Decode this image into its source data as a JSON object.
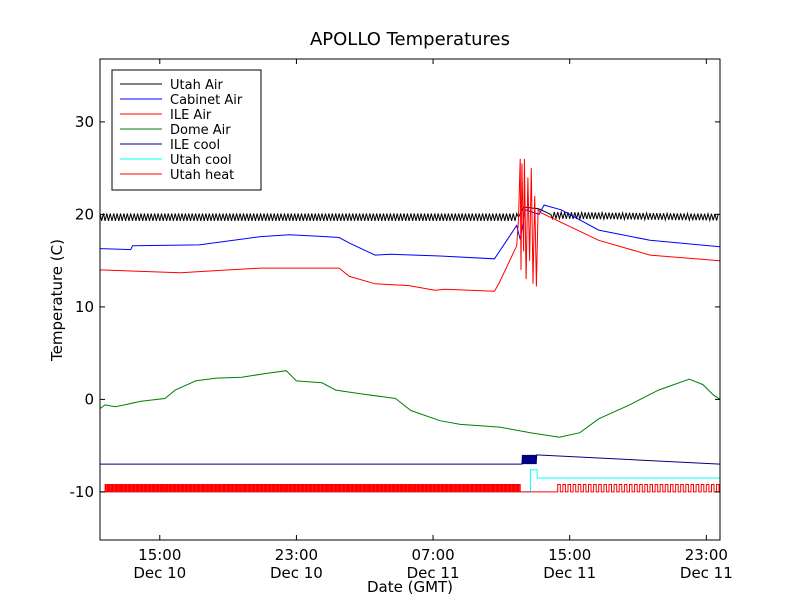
{
  "chart_data": {
    "type": "line",
    "title": "APOLLO Temperatures",
    "xlabel": "Date (GMT)",
    "ylabel": "Temperature (C)",
    "x_units": "hours since Dec 10 00:00 GMT",
    "xlim": [
      11.5,
      47.8
    ],
    "ylim": [
      -15.2,
      36.8
    ],
    "grid": false,
    "legend_position": "top-left",
    "xticks": [
      {
        "value": 15,
        "time": "15:00",
        "date": "Dec 10"
      },
      {
        "value": 23,
        "time": "23:00",
        "date": "Dec 10"
      },
      {
        "value": 31,
        "time": "07:00",
        "date": "Dec 11"
      },
      {
        "value": 39,
        "time": "15:00",
        "date": "Dec 11"
      },
      {
        "value": 47,
        "time": "23:00",
        "date": "Dec 11"
      }
    ],
    "yticks": [
      {
        "value": -10,
        "label": "-10"
      },
      {
        "value": 0,
        "label": "0"
      },
      {
        "value": 10,
        "label": "10"
      },
      {
        "value": 20,
        "label": "20"
      },
      {
        "value": 30,
        "label": "30"
      }
    ],
    "series": [
      {
        "name": "Utah Air",
        "color": "#000000",
        "oscillation": {
          "center": 19.7,
          "amplitude": 0.4,
          "period_h": 0.2
        },
        "points": [
          [
            11.5,
            19.7
          ],
          [
            36.0,
            19.7
          ],
          [
            36.3,
            20.8
          ],
          [
            37.2,
            20.6
          ],
          [
            38.0,
            19.9
          ],
          [
            47.8,
            19.7
          ]
        ]
      },
      {
        "name": "Cabinet Air",
        "color": "#0000ff",
        "points": [
          [
            11.5,
            16.3
          ],
          [
            13.3,
            16.2
          ],
          [
            13.4,
            16.6
          ],
          [
            17.3,
            16.7
          ],
          [
            20.9,
            17.6
          ],
          [
            22.6,
            17.8
          ],
          [
            24.7,
            17.6
          ],
          [
            25.5,
            17.5
          ],
          [
            26.1,
            16.9
          ],
          [
            27.6,
            15.6
          ],
          [
            28.5,
            15.7
          ],
          [
            31.4,
            15.5
          ],
          [
            34.6,
            15.2
          ],
          [
            35.9,
            18.8
          ],
          [
            36.1,
            17.3
          ],
          [
            36.4,
            20.5
          ],
          [
            37.2,
            20.0
          ],
          [
            37.5,
            21.0
          ],
          [
            38.5,
            20.5
          ],
          [
            40.7,
            18.3
          ],
          [
            43.7,
            17.2
          ],
          [
            47.8,
            16.5
          ]
        ]
      },
      {
        "name": "ILE Air",
        "color": "#ff0000",
        "points": [
          [
            11.5,
            14.0
          ],
          [
            16.2,
            13.7
          ],
          [
            20.9,
            14.2
          ],
          [
            25.5,
            14.2
          ],
          [
            26.1,
            13.3
          ],
          [
            27.6,
            12.5
          ],
          [
            29.6,
            12.3
          ],
          [
            31.1,
            11.8
          ],
          [
            31.7,
            11.9
          ],
          [
            34.6,
            11.7
          ],
          [
            34.9,
            12.7
          ],
          [
            35.9,
            16.6
          ],
          [
            36.0,
            19.5
          ],
          [
            36.1,
            26
          ],
          [
            36.15,
            14
          ],
          [
            36.2,
            25.5
          ],
          [
            36.3,
            16
          ],
          [
            36.35,
            26
          ],
          [
            36.45,
            13
          ],
          [
            36.55,
            24
          ],
          [
            36.65,
            15
          ],
          [
            36.75,
            25
          ],
          [
            36.85,
            12.5
          ],
          [
            36.95,
            22
          ],
          [
            37.05,
            12.2
          ],
          [
            37.15,
            20.6
          ],
          [
            37.3,
            20.2
          ],
          [
            40.7,
            17.2
          ],
          [
            43.7,
            15.6
          ],
          [
            47.8,
            15.0
          ]
        ]
      },
      {
        "name": "Dome Air",
        "color": "#008000",
        "points": [
          [
            11.5,
            -1.0
          ],
          [
            11.8,
            -0.6
          ],
          [
            12.4,
            -0.8
          ],
          [
            13.9,
            -0.2
          ],
          [
            15.3,
            0.1
          ],
          [
            15.9,
            1.0
          ],
          [
            17.1,
            2.0
          ],
          [
            18.3,
            2.3
          ],
          [
            19.8,
            2.4
          ],
          [
            21.2,
            2.8
          ],
          [
            22.4,
            3.1
          ],
          [
            23.0,
            2.0
          ],
          [
            24.5,
            1.8
          ],
          [
            25.3,
            1.0
          ],
          [
            26.8,
            0.6
          ],
          [
            28.8,
            0.1
          ],
          [
            29.7,
            -1.2
          ],
          [
            31.4,
            -2.3
          ],
          [
            32.6,
            -2.7
          ],
          [
            34.9,
            -3.0
          ],
          [
            36.7,
            -3.6
          ],
          [
            38.4,
            -4.1
          ],
          [
            39.6,
            -3.6
          ],
          [
            40.7,
            -2.1
          ],
          [
            42.5,
            -0.6
          ],
          [
            44.2,
            1.0
          ],
          [
            46.0,
            2.2
          ],
          [
            46.8,
            1.6
          ],
          [
            47.4,
            0.5
          ],
          [
            47.8,
            0.0
          ]
        ]
      },
      {
        "name": "ILE cool",
        "color": "#000080",
        "base": -7.0,
        "active_value": -6.0,
        "active_ranges": [
          [
            36.2,
            37.1
          ]
        ]
      },
      {
        "name": "Utah cool",
        "color": "#00ffff",
        "points": [
          [
            11.5,
            -10
          ],
          [
            36.7,
            -10
          ],
          [
            36.7,
            -7.6
          ],
          [
            37.1,
            -7.6
          ],
          [
            37.1,
            -8.5
          ],
          [
            47.8,
            -8.5
          ]
        ]
      },
      {
        "name": "Utah heat",
        "color": "#ff0000",
        "off_value": -10.0,
        "on_value": -9.2,
        "cycling_ranges": [
          {
            "range": [
              11.8,
              36.1
            ],
            "period_h": 0.12
          },
          {
            "range": [
              38.3,
              47.8
            ],
            "period_h": 0.3
          }
        ]
      }
    ]
  }
}
